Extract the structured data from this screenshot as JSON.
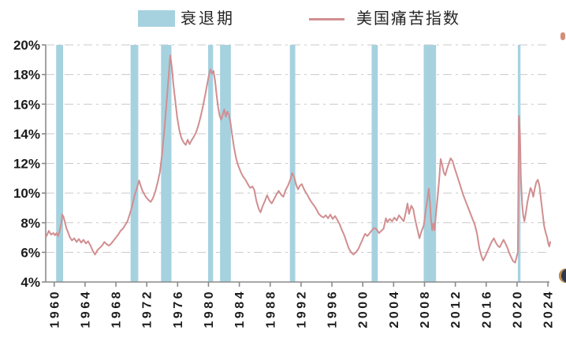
{
  "legend": {
    "items": [
      {
        "label": "衰退期",
        "type": "band",
        "color": "#a6d2e0"
      },
      {
        "label": "美国痛苦指数",
        "type": "line",
        "color": "#d18e90"
      }
    ]
  },
  "colors": {
    "background": "#ffffff",
    "band": "#a6d2e0",
    "line": "#d18e90",
    "grid": "#c9c9c9",
    "axis": "#8a8a8a",
    "text": "#1c1c1c"
  },
  "chart_data": {
    "type": "line",
    "title": "",
    "xlabel": "",
    "ylabel": "",
    "xlim": [
      1958.9,
      2024.2
    ],
    "ylim": [
      4,
      20
    ],
    "grid": "horizontal dash-dot",
    "legend_position": "top",
    "x_ticks": [
      1960,
      1964,
      1968,
      1972,
      1976,
      1980,
      1984,
      1988,
      1992,
      1996,
      2000,
      2004,
      2008,
      2012,
      2016,
      2020,
      2024
    ],
    "x_tick_labels": [
      "1960",
      "1964",
      "1968",
      "1972",
      "1976",
      "1980",
      "1984",
      "1988",
      "1992",
      "1996",
      "2000",
      "2004",
      "2008",
      "2012",
      "2016",
      "2020",
      "2024"
    ],
    "y_ticks": [
      4,
      6,
      8,
      10,
      12,
      14,
      16,
      18,
      20
    ],
    "y_tick_labels": [
      "4%",
      "6%",
      "8%",
      "10%",
      "12%",
      "14%",
      "16%",
      "18%",
      "20%"
    ],
    "recession_bands": {
      "label": "衰退期",
      "ranges": [
        [
          1960.25,
          1961.15
        ],
        [
          1969.9,
          1970.9
        ],
        [
          1973.85,
          1975.2
        ],
        [
          1979.95,
          1980.6
        ],
        [
          1981.5,
          1982.9
        ],
        [
          1990.55,
          1991.25
        ],
        [
          2001.15,
          2001.95
        ],
        [
          2007.9,
          2009.5
        ],
        [
          2020.1,
          2020.45
        ]
      ]
    },
    "series": [
      {
        "name": "美国痛苦指数",
        "unit": "%",
        "points": [
          [
            1959.0,
            7.1
          ],
          [
            1959.3,
            7.45
          ],
          [
            1959.6,
            7.2
          ],
          [
            1959.9,
            7.3
          ],
          [
            1960.1,
            7.15
          ],
          [
            1960.3,
            7.3
          ],
          [
            1960.5,
            7.1
          ],
          [
            1960.7,
            7.45
          ],
          [
            1960.9,
            7.9
          ],
          [
            1961.05,
            8.55
          ],
          [
            1961.2,
            8.4
          ],
          [
            1961.4,
            8.0
          ],
          [
            1961.6,
            7.6
          ],
          [
            1961.8,
            7.35
          ],
          [
            1962.0,
            7.05
          ],
          [
            1962.3,
            6.8
          ],
          [
            1962.6,
            6.95
          ],
          [
            1962.9,
            6.7
          ],
          [
            1963.2,
            6.9
          ],
          [
            1963.5,
            6.65
          ],
          [
            1963.8,
            6.85
          ],
          [
            1964.1,
            6.6
          ],
          [
            1964.4,
            6.75
          ],
          [
            1964.7,
            6.45
          ],
          [
            1965.0,
            6.1
          ],
          [
            1965.3,
            5.85
          ],
          [
            1965.6,
            6.15
          ],
          [
            1965.9,
            6.3
          ],
          [
            1966.2,
            6.45
          ],
          [
            1966.5,
            6.7
          ],
          [
            1966.8,
            6.55
          ],
          [
            1967.1,
            6.45
          ],
          [
            1967.4,
            6.6
          ],
          [
            1967.7,
            6.8
          ],
          [
            1968.0,
            7.0
          ],
          [
            1968.3,
            7.2
          ],
          [
            1968.6,
            7.45
          ],
          [
            1968.9,
            7.6
          ],
          [
            1969.2,
            7.85
          ],
          [
            1969.5,
            8.1
          ],
          [
            1969.8,
            8.6
          ],
          [
            1970.1,
            9.1
          ],
          [
            1970.4,
            9.8
          ],
          [
            1970.7,
            10.3
          ],
          [
            1971.0,
            10.85
          ],
          [
            1971.2,
            10.5
          ],
          [
            1971.45,
            10.15
          ],
          [
            1971.7,
            9.9
          ],
          [
            1971.95,
            9.7
          ],
          [
            1972.2,
            9.55
          ],
          [
            1972.5,
            9.4
          ],
          [
            1972.8,
            9.65
          ],
          [
            1973.1,
            10.1
          ],
          [
            1973.4,
            10.7
          ],
          [
            1973.7,
            11.4
          ],
          [
            1974.0,
            12.7
          ],
          [
            1974.3,
            14.4
          ],
          [
            1974.6,
            16.3
          ],
          [
            1974.85,
            18.0
          ],
          [
            1975.05,
            19.3
          ],
          [
            1975.25,
            18.5
          ],
          [
            1975.45,
            17.3
          ],
          [
            1975.7,
            16.2
          ],
          [
            1975.95,
            15.1
          ],
          [
            1976.2,
            14.3
          ],
          [
            1976.5,
            13.7
          ],
          [
            1976.8,
            13.4
          ],
          [
            1977.05,
            13.25
          ],
          [
            1977.3,
            13.6
          ],
          [
            1977.55,
            13.3
          ],
          [
            1977.8,
            13.55
          ],
          [
            1978.1,
            13.8
          ],
          [
            1978.4,
            14.1
          ],
          [
            1978.7,
            14.6
          ],
          [
            1979.0,
            15.2
          ],
          [
            1979.3,
            15.9
          ],
          [
            1979.6,
            16.7
          ],
          [
            1979.85,
            17.4
          ],
          [
            1980.05,
            17.95
          ],
          [
            1980.25,
            18.35
          ],
          [
            1980.45,
            18.05
          ],
          [
            1980.65,
            18.25
          ],
          [
            1980.85,
            17.6
          ],
          [
            1981.05,
            16.6
          ],
          [
            1981.25,
            15.8
          ],
          [
            1981.45,
            15.2
          ],
          [
            1981.65,
            14.95
          ],
          [
            1981.85,
            15.3
          ],
          [
            1982.05,
            15.65
          ],
          [
            1982.25,
            15.15
          ],
          [
            1982.45,
            15.5
          ],
          [
            1982.65,
            15.3
          ],
          [
            1982.85,
            14.75
          ],
          [
            1983.05,
            14.0
          ],
          [
            1983.3,
            13.1
          ],
          [
            1983.6,
            12.3
          ],
          [
            1983.9,
            11.8
          ],
          [
            1984.2,
            11.4
          ],
          [
            1984.5,
            11.1
          ],
          [
            1984.8,
            10.9
          ],
          [
            1985.1,
            10.6
          ],
          [
            1985.4,
            10.35
          ],
          [
            1985.7,
            10.45
          ],
          [
            1985.95,
            10.2
          ],
          [
            1986.2,
            9.5
          ],
          [
            1986.5,
            8.95
          ],
          [
            1986.75,
            8.7
          ],
          [
            1987.0,
            9.1
          ],
          [
            1987.3,
            9.45
          ],
          [
            1987.6,
            9.85
          ],
          [
            1987.9,
            9.5
          ],
          [
            1988.2,
            9.3
          ],
          [
            1988.5,
            9.6
          ],
          [
            1988.8,
            9.9
          ],
          [
            1989.1,
            10.15
          ],
          [
            1989.4,
            9.9
          ],
          [
            1989.7,
            9.75
          ],
          [
            1990.0,
            10.2
          ],
          [
            1990.3,
            10.5
          ],
          [
            1990.6,
            10.9
          ],
          [
            1990.85,
            11.35
          ],
          [
            1991.1,
            11.1
          ],
          [
            1991.35,
            10.6
          ],
          [
            1991.6,
            10.25
          ],
          [
            1991.85,
            10.5
          ],
          [
            1992.1,
            10.6
          ],
          [
            1992.35,
            10.3
          ],
          [
            1992.6,
            10.05
          ],
          [
            1992.85,
            9.85
          ],
          [
            1993.1,
            9.6
          ],
          [
            1993.4,
            9.35
          ],
          [
            1993.7,
            9.15
          ],
          [
            1994.0,
            8.9
          ],
          [
            1994.3,
            8.6
          ],
          [
            1994.6,
            8.45
          ],
          [
            1994.9,
            8.35
          ],
          [
            1995.2,
            8.5
          ],
          [
            1995.5,
            8.3
          ],
          [
            1995.8,
            8.55
          ],
          [
            1996.1,
            8.25
          ],
          [
            1996.4,
            8.45
          ],
          [
            1996.7,
            8.2
          ],
          [
            1997.0,
            7.9
          ],
          [
            1997.3,
            7.5
          ],
          [
            1997.6,
            7.15
          ],
          [
            1997.9,
            6.7
          ],
          [
            1998.2,
            6.25
          ],
          [
            1998.5,
            6.0
          ],
          [
            1998.8,
            5.85
          ],
          [
            1999.1,
            6.0
          ],
          [
            1999.4,
            6.2
          ],
          [
            1999.7,
            6.55
          ],
          [
            2000.0,
            6.9
          ],
          [
            2000.3,
            7.25
          ],
          [
            2000.6,
            7.1
          ],
          [
            2000.9,
            7.3
          ],
          [
            2001.2,
            7.5
          ],
          [
            2001.5,
            7.65
          ],
          [
            2001.8,
            7.55
          ],
          [
            2002.1,
            7.3
          ],
          [
            2002.4,
            7.45
          ],
          [
            2002.7,
            7.6
          ],
          [
            2003.0,
            8.3
          ],
          [
            2003.2,
            8.05
          ],
          [
            2003.5,
            8.25
          ],
          [
            2003.8,
            8.1
          ],
          [
            2004.1,
            8.35
          ],
          [
            2004.4,
            8.15
          ],
          [
            2004.7,
            8.5
          ],
          [
            2005.0,
            8.3
          ],
          [
            2005.3,
            8.1
          ],
          [
            2005.6,
            8.75
          ],
          [
            2005.8,
            9.3
          ],
          [
            2006.0,
            8.6
          ],
          [
            2006.3,
            9.15
          ],
          [
            2006.55,
            8.9
          ],
          [
            2006.8,
            8.2
          ],
          [
            2007.1,
            7.5
          ],
          [
            2007.35,
            6.95
          ],
          [
            2007.6,
            7.4
          ],
          [
            2007.9,
            7.8
          ],
          [
            2008.1,
            8.6
          ],
          [
            2008.35,
            9.5
          ],
          [
            2008.55,
            10.3
          ],
          [
            2008.7,
            9.4
          ],
          [
            2008.85,
            8.2
          ],
          [
            2009.0,
            7.5
          ],
          [
            2009.15,
            7.95
          ],
          [
            2009.3,
            7.5
          ],
          [
            2009.5,
            8.7
          ],
          [
            2009.7,
            9.7
          ],
          [
            2009.9,
            10.9
          ],
          [
            2010.1,
            12.3
          ],
          [
            2010.3,
            11.9
          ],
          [
            2010.5,
            11.4
          ],
          [
            2010.7,
            11.2
          ],
          [
            2010.9,
            11.6
          ],
          [
            2011.15,
            12.0
          ],
          [
            2011.4,
            12.35
          ],
          [
            2011.65,
            12.15
          ],
          [
            2011.9,
            11.7
          ],
          [
            2012.15,
            11.3
          ],
          [
            2012.4,
            10.9
          ],
          [
            2012.7,
            10.4
          ],
          [
            2013.0,
            9.9
          ],
          [
            2013.3,
            9.5
          ],
          [
            2013.6,
            9.1
          ],
          [
            2013.9,
            8.7
          ],
          [
            2014.2,
            8.3
          ],
          [
            2014.5,
            7.9
          ],
          [
            2014.8,
            7.3
          ],
          [
            2015.1,
            6.3
          ],
          [
            2015.35,
            5.8
          ],
          [
            2015.6,
            5.45
          ],
          [
            2015.85,
            5.7
          ],
          [
            2016.1,
            6.0
          ],
          [
            2016.4,
            6.35
          ],
          [
            2016.7,
            6.7
          ],
          [
            2017.0,
            6.95
          ],
          [
            2017.25,
            6.65
          ],
          [
            2017.5,
            6.45
          ],
          [
            2017.75,
            6.35
          ],
          [
            2018.0,
            6.6
          ],
          [
            2018.25,
            6.85
          ],
          [
            2018.5,
            6.6
          ],
          [
            2018.75,
            6.3
          ],
          [
            2019.0,
            5.95
          ],
          [
            2019.25,
            5.65
          ],
          [
            2019.5,
            5.4
          ],
          [
            2019.75,
            5.3
          ],
          [
            2019.95,
            5.7
          ],
          [
            2020.1,
            6.0
          ],
          [
            2020.25,
            15.2
          ],
          [
            2020.38,
            14.0
          ],
          [
            2020.5,
            11.0
          ],
          [
            2020.65,
            9.3
          ],
          [
            2020.8,
            8.5
          ],
          [
            2020.95,
            8.1
          ],
          [
            2021.15,
            8.7
          ],
          [
            2021.35,
            9.4
          ],
          [
            2021.55,
            9.9
          ],
          [
            2021.75,
            10.35
          ],
          [
            2021.95,
            10.1
          ],
          [
            2022.1,
            9.75
          ],
          [
            2022.3,
            10.3
          ],
          [
            2022.5,
            10.75
          ],
          [
            2022.7,
            10.9
          ],
          [
            2022.9,
            10.5
          ],
          [
            2023.1,
            9.6
          ],
          [
            2023.3,
            8.7
          ],
          [
            2023.5,
            7.8
          ],
          [
            2023.7,
            7.35
          ],
          [
            2023.9,
            7.0
          ],
          [
            2024.05,
            6.6
          ],
          [
            2024.18,
            6.4
          ],
          [
            2024.3,
            6.7
          ]
        ]
      }
    ]
  },
  "artifacts": {
    "top_right_mark": "cropped red fragment",
    "bottom_right_mark": "cropped dark circular icon"
  }
}
